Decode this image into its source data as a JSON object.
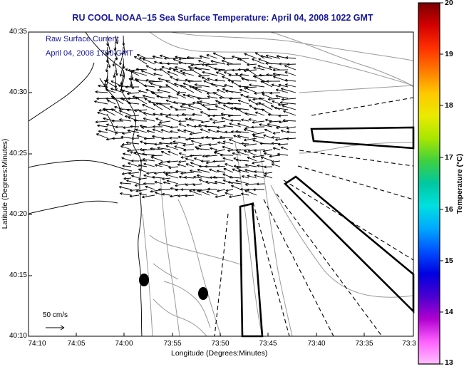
{
  "header": {
    "title": "RU COOL  NOAA–15  Sea Surface Temperature:  April 04, 2008 1022 GMT"
  },
  "legend": {
    "line1": "Raw Surface Current",
    "line2": "April 04, 2008 1700 GMT",
    "scale_label": "50 cm/s"
  },
  "axes": {
    "ylabel": "Latitude (Degrees:Minutes)",
    "xlabel": "Longitude (Degrees:Minutes)",
    "yticks": [
      "40:35",
      "40:30",
      "40:25",
      "40:20",
      "40:15",
      "40:10"
    ],
    "xticks": [
      "74:10",
      "74:05",
      "74:00",
      "73:55",
      "73:50",
      "73:45",
      "73:40",
      "73:35",
      "73:3"
    ]
  },
  "colorbar": {
    "label": "Temperature (°C)",
    "ticks": [
      "20",
      "19",
      "18",
      "17",
      "16",
      "15",
      "14",
      "13"
    ],
    "colors": [
      "#7a0000",
      "#d40000",
      "#ff3000",
      "#ff7a00",
      "#ffc800",
      "#eaea00",
      "#a8e600",
      "#40d040",
      "#00c8a0",
      "#00e0e0",
      "#00a8ff",
      "#0050ff",
      "#0000e0",
      "#4a00d0",
      "#b000d0",
      "#ff60ff",
      "#ffc0ff"
    ]
  }
}
